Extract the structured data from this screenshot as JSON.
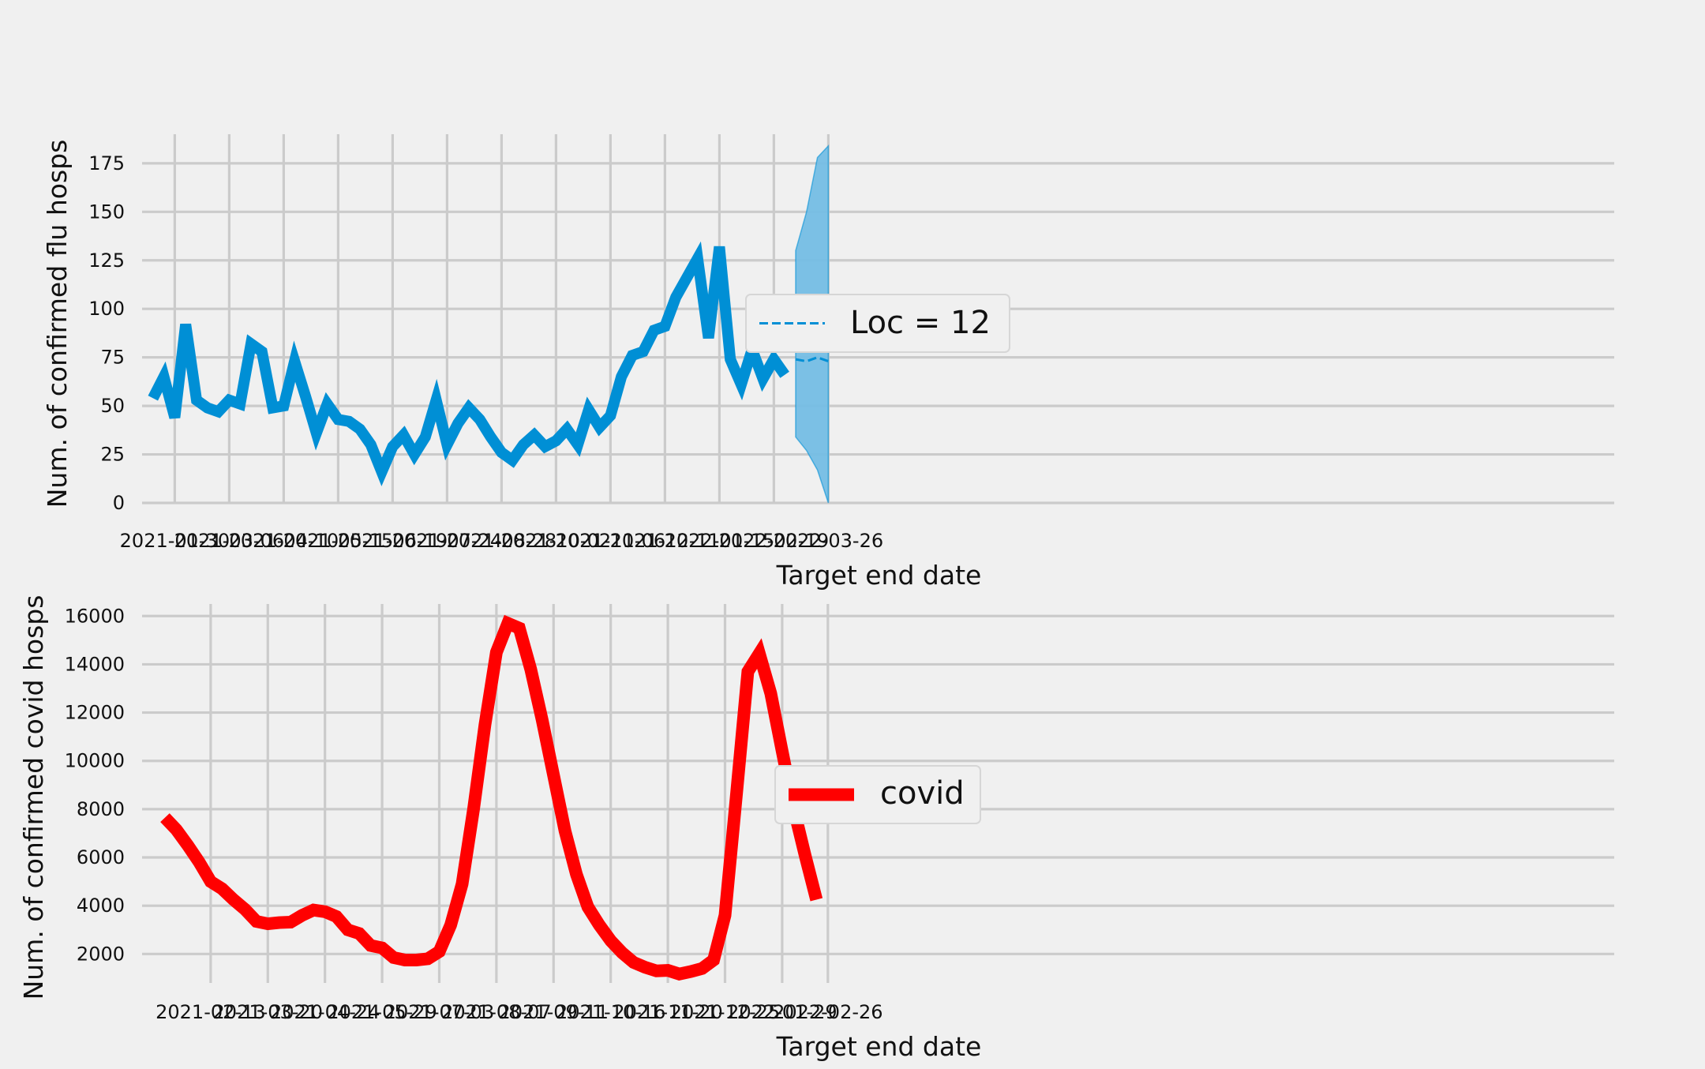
{
  "chart_data": [
    {
      "type": "line",
      "xlabel": "Target end date",
      "ylabel": "Num. of confirmed flu hosps",
      "ylim": [
        0,
        190
      ],
      "yticks": [
        0,
        25,
        50,
        75,
        100,
        125,
        150,
        175
      ],
      "xticks": [
        "2021-01-30",
        "2021-03-06",
        "2021-04-10",
        "2021-05-15",
        "2021-06-19",
        "2021-07-24",
        "2021-08-28",
        "2021-10-02",
        "2021-11-06",
        "2021-12-11",
        "2022-01-15",
        "2022-02-19",
        "2022-03-26"
      ],
      "grid": true,
      "legend": {
        "placement": "center",
        "entries": [
          "Loc = 12"
        ]
      },
      "colors": {
        "observed": "#008fd5",
        "forecast": "#008fd5",
        "band": "#74bde4"
      },
      "series": [
        {
          "values": [
            [
              "2021-01-16",
              54
            ],
            [
              "2021-01-23",
              65
            ],
            [
              "2021-01-30",
              44
            ],
            [
              "2021-02-06",
              92
            ],
            [
              "2021-02-13",
              53
            ],
            [
              "2021-02-20",
              49
            ],
            [
              "2021-02-27",
              47
            ],
            [
              "2021-03-06",
              53
            ],
            [
              "2021-03-13",
              51
            ],
            [
              "2021-03-20",
              82
            ],
            [
              "2021-03-27",
              78
            ],
            [
              "2021-04-03",
              49
            ],
            [
              "2021-04-10",
              50
            ],
            [
              "2021-04-17",
              73
            ],
            [
              "2021-04-24",
              55
            ],
            [
              "2021-05-01",
              36
            ],
            [
              "2021-05-08",
              51
            ],
            [
              "2021-05-15",
              43
            ],
            [
              "2021-05-22",
              42
            ],
            [
              "2021-05-29",
              38
            ],
            [
              "2021-06-05",
              30
            ],
            [
              "2021-06-12",
              16
            ],
            [
              "2021-06-19",
              29
            ],
            [
              "2021-06-26",
              35
            ],
            [
              "2021-07-03",
              25
            ],
            [
              "2021-07-10",
              34
            ],
            [
              "2021-07-17",
              53
            ],
            [
              "2021-07-24",
              30
            ],
            [
              "2021-07-31",
              41
            ],
            [
              "2021-08-07",
              49
            ],
            [
              "2021-08-14",
              43
            ],
            [
              "2021-08-21",
              34
            ],
            [
              "2021-08-28",
              26
            ],
            [
              "2021-09-04",
              22
            ],
            [
              "2021-09-11",
              30
            ],
            [
              "2021-09-18",
              35
            ],
            [
              "2021-09-25",
              29
            ],
            [
              "2021-10-02",
              32
            ],
            [
              "2021-10-09",
              38
            ],
            [
              "2021-10-16",
              30
            ],
            [
              "2021-10-23",
              48
            ],
            [
              "2021-10-30",
              39
            ],
            [
              "2021-11-06",
              45
            ],
            [
              "2021-11-13",
              65
            ],
            [
              "2021-11-20",
              76
            ],
            [
              "2021-11-27",
              78
            ],
            [
              "2021-12-04",
              89
            ],
            [
              "2021-12-11",
              91
            ],
            [
              "2021-12-18",
              106
            ],
            [
              "2021-12-25",
              116
            ],
            [
              "2022-01-01",
              126
            ],
            [
              "2022-01-08",
              85
            ],
            [
              "2022-01-15",
              132
            ],
            [
              "2022-01-22",
              74
            ],
            [
              "2022-01-29",
              61
            ],
            [
              "2022-02-05",
              79
            ],
            [
              "2022-02-12",
              64
            ],
            [
              "2022-02-19",
              74
            ],
            [
              "2022-02-26",
              66
            ]
          ]
        },
        {
          "name": "Loc = 12",
          "style": "dashed",
          "values": [
            [
              "2022-03-05",
              74
            ],
            [
              "2022-03-12",
              73
            ],
            [
              "2022-03-19",
              75
            ],
            [
              "2022-03-26",
              73
            ]
          ],
          "band": [
            [
              "2022-03-05",
              34,
              130
            ],
            [
              "2022-03-12",
              27,
              150
            ],
            [
              "2022-03-19",
              17,
              178
            ],
            [
              "2022-03-26",
              0,
              184
            ]
          ]
        }
      ]
    },
    {
      "type": "line",
      "xlabel": "Target end date",
      "ylabel": "Num. of confirmed covid hosps",
      "ylim": [
        800,
        16500
      ],
      "yticks": [
        2000,
        4000,
        6000,
        8000,
        10000,
        12000,
        14000,
        16000
      ],
      "xticks": [
        "2021-02-13",
        "2021-03-20",
        "2021-04-24",
        "2021-05-29",
        "2021-07-03",
        "2021-08-07",
        "2021-09-11",
        "2021-10-16",
        "2021-11-20",
        "2021-12-25",
        "2022-01-29",
        "2022-02-26"
      ],
      "grid": true,
      "legend": {
        "placement": "center",
        "entries": [
          "covid"
        ]
      },
      "colors": {
        "covid": "#ff0000"
      },
      "series": [
        {
          "name": "covid",
          "values": [
            [
              "2021-01-16",
              7650
            ],
            [
              "2021-01-23",
              7150
            ],
            [
              "2021-01-30",
              6500
            ],
            [
              "2021-02-06",
              5800
            ],
            [
              "2021-02-13",
              5000
            ],
            [
              "2021-02-20",
              4700
            ],
            [
              "2021-02-27",
              4250
            ],
            [
              "2021-03-06",
              3850
            ],
            [
              "2021-03-13",
              3350
            ],
            [
              "2021-03-20",
              3250
            ],
            [
              "2021-03-27",
              3300
            ],
            [
              "2021-04-03",
              3320
            ],
            [
              "2021-04-10",
              3600
            ],
            [
              "2021-04-17",
              3820
            ],
            [
              "2021-04-24",
              3750
            ],
            [
              "2021-05-01",
              3550
            ],
            [
              "2021-05-08",
              3000
            ],
            [
              "2021-05-15",
              2850
            ],
            [
              "2021-05-22",
              2350
            ],
            [
              "2021-05-29",
              2250
            ],
            [
              "2021-06-05",
              1850
            ],
            [
              "2021-06-12",
              1750
            ],
            [
              "2021-06-19",
              1750
            ],
            [
              "2021-06-26",
              1800
            ],
            [
              "2021-07-03",
              2100
            ],
            [
              "2021-07-10",
              3200
            ],
            [
              "2021-07-17",
              4900
            ],
            [
              "2021-07-24",
              8000
            ],
            [
              "2021-07-31",
              11500
            ],
            [
              "2021-08-07",
              14500
            ],
            [
              "2021-08-14",
              15700
            ],
            [
              "2021-08-21",
              15500
            ],
            [
              "2021-08-28",
              13800
            ],
            [
              "2021-09-04",
              11700
            ],
            [
              "2021-09-11",
              9400
            ],
            [
              "2021-09-18",
              7100
            ],
            [
              "2021-09-25",
              5300
            ],
            [
              "2021-10-02",
              3950
            ],
            [
              "2021-10-09",
              3200
            ],
            [
              "2021-10-16",
              2550
            ],
            [
              "2021-10-23",
              2050
            ],
            [
              "2021-10-30",
              1650
            ],
            [
              "2021-11-06",
              1450
            ],
            [
              "2021-11-13",
              1300
            ],
            [
              "2021-11-20",
              1320
            ],
            [
              "2021-11-27",
              1170
            ],
            [
              "2021-12-04",
              1270
            ],
            [
              "2021-12-11",
              1400
            ],
            [
              "2021-12-18",
              1750
            ],
            [
              "2021-12-25",
              3600
            ],
            [
              "2022-01-01",
              8600
            ],
            [
              "2022-01-08",
              13700
            ],
            [
              "2022-01-15",
              14450
            ],
            [
              "2022-01-22",
              12800
            ],
            [
              "2022-01-29",
              10400
            ],
            [
              "2022-02-05",
              8050
            ],
            [
              "2022-02-12",
              6100
            ],
            [
              "2022-02-19",
              4250
            ]
          ]
        }
      ]
    }
  ]
}
